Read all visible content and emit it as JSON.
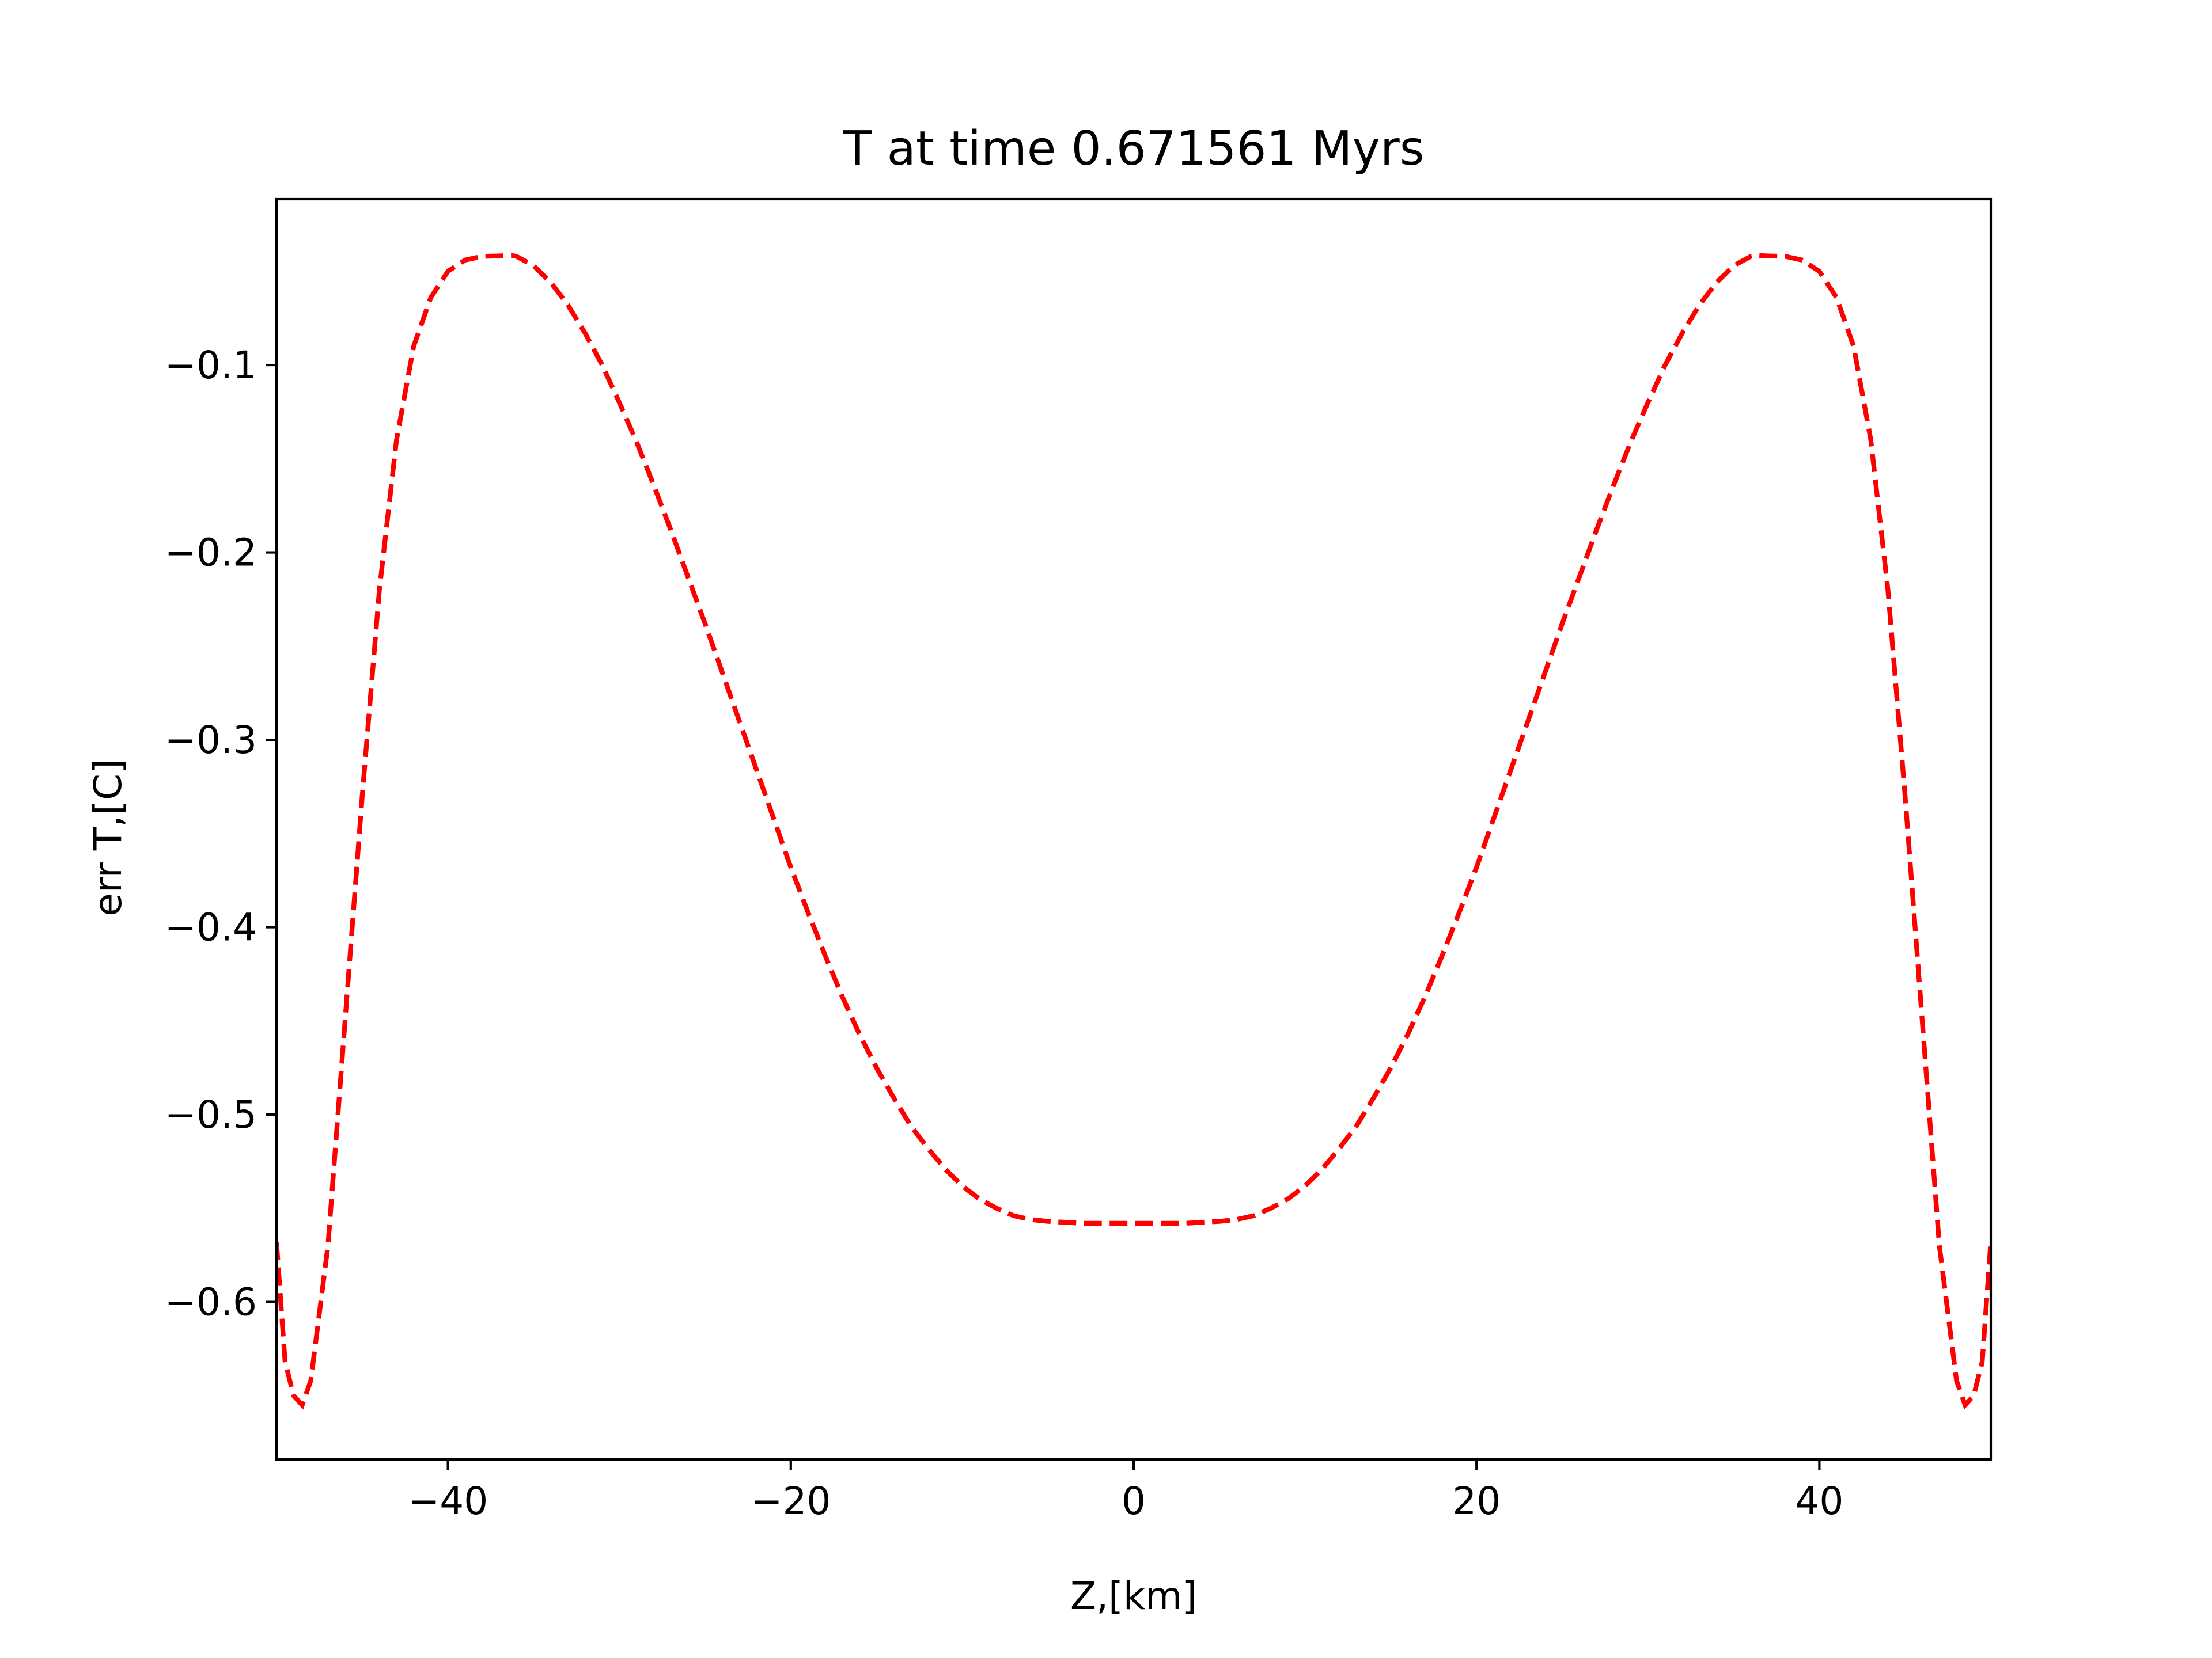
{
  "chart_data": {
    "type": "line",
    "title": "T at time 0.671561 Myrs",
    "xlabel": "Z,[km]",
    "ylabel": "err T,[C]",
    "xlim": [
      -50,
      50
    ],
    "ylim": [
      -0.684,
      -0.0115
    ],
    "xticks": [
      -40,
      -20,
      0,
      20,
      40
    ],
    "xtick_labels": [
      "−40",
      "−20",
      "0",
      "20",
      "40"
    ],
    "yticks": [
      -0.6,
      -0.5,
      -0.4,
      -0.3,
      -0.2,
      -0.1
    ],
    "ytick_labels": [
      "−0.6",
      "−0.5",
      "−0.4",
      "−0.3",
      "−0.2",
      "−0.1"
    ],
    "grid": false,
    "series": [
      {
        "color": "#ff0000",
        "linestyle": "dashed",
        "x": [
          -50,
          -49.5,
          -49,
          -48.5,
          -48,
          -47,
          -46,
          -45,
          -44,
          -43,
          -42,
          -41,
          -40,
          -39,
          -38,
          -37,
          -36.3,
          -36,
          -35,
          -34,
          -33,
          -32,
          -31,
          -30,
          -29,
          -28,
          -27,
          -26,
          -25,
          -24,
          -23,
          -22,
          -21,
          -20,
          -19,
          -18,
          -17,
          -16,
          -15,
          -14,
          -13,
          -12,
          -11,
          -10,
          -9,
          -8,
          -7,
          -6,
          -5,
          -4,
          -3,
          -2,
          -1,
          0,
          1,
          2,
          3,
          4,
          5,
          6,
          7,
          8,
          9,
          10,
          11,
          12,
          13,
          14,
          15,
          16,
          17,
          18,
          19,
          20,
          21,
          22,
          23,
          24,
          25,
          26,
          27,
          28,
          29,
          30,
          31,
          32,
          33,
          34,
          35,
          36,
          36.3,
          37,
          38,
          39,
          40,
          41,
          42,
          43,
          44,
          45,
          46,
          47,
          48,
          48.5,
          49,
          49.5,
          50
        ],
        "y": [
          -0.568,
          -0.632,
          -0.65,
          -0.655,
          -0.642,
          -0.57,
          -0.45,
          -0.33,
          -0.22,
          -0.14,
          -0.09,
          -0.064,
          -0.05,
          -0.044,
          -0.042,
          -0.0418,
          -0.0415,
          -0.042,
          -0.047,
          -0.056,
          -0.068,
          -0.083,
          -0.1,
          -0.12,
          -0.141,
          -0.164,
          -0.188,
          -0.213,
          -0.238,
          -0.264,
          -0.29,
          -0.316,
          -0.342,
          -0.368,
          -0.392,
          -0.415,
          -0.437,
          -0.457,
          -0.475,
          -0.491,
          -0.506,
          -0.518,
          -0.529,
          -0.538,
          -0.545,
          -0.55,
          -0.554,
          -0.556,
          -0.557,
          -0.5575,
          -0.558,
          -0.558,
          -0.558,
          -0.558,
          -0.558,
          -0.558,
          -0.558,
          -0.5575,
          -0.557,
          -0.556,
          -0.554,
          -0.55,
          -0.545,
          -0.538,
          -0.529,
          -0.518,
          -0.506,
          -0.491,
          -0.475,
          -0.457,
          -0.437,
          -0.415,
          -0.392,
          -0.368,
          -0.342,
          -0.316,
          -0.29,
          -0.264,
          -0.238,
          -0.213,
          -0.188,
          -0.164,
          -0.141,
          -0.12,
          -0.1,
          -0.083,
          -0.068,
          -0.056,
          -0.047,
          -0.042,
          -0.0415,
          -0.0418,
          -0.042,
          -0.044,
          -0.05,
          -0.064,
          -0.09,
          -0.14,
          -0.22,
          -0.33,
          -0.45,
          -0.57,
          -0.642,
          -0.655,
          -0.65,
          -0.632,
          -0.568
        ]
      }
    ]
  }
}
